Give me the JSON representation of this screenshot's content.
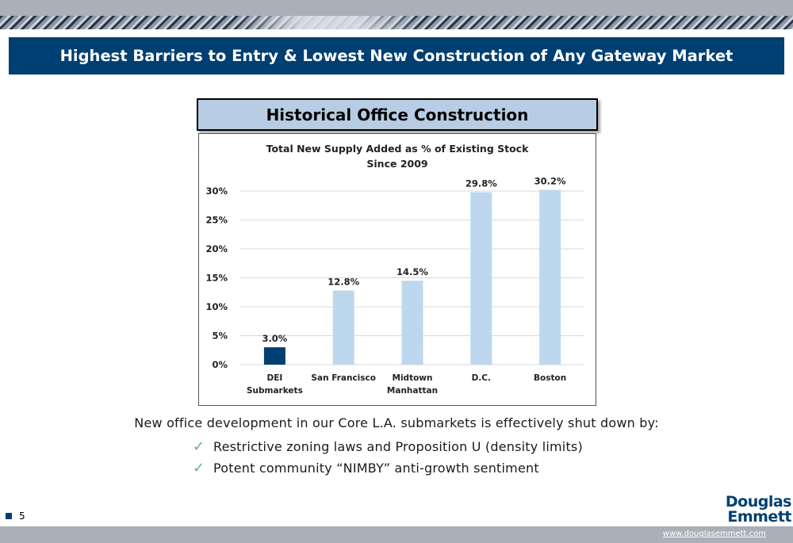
{
  "header": {
    "title": "Highest Barriers to Entry & Lowest New Construction of Any Gateway Market"
  },
  "chart_header": "Historical Office Construction",
  "chart_data": {
    "type": "bar",
    "title": "Total New Supply Added as % of Existing Stock",
    "subtitle": "Since 2009",
    "categories": [
      "DEI Submarkets",
      "San Francisco",
      "Midtown Manhattan",
      "D.C.",
      "Boston"
    ],
    "category_lines": [
      [
        "DEI",
        "Submarkets"
      ],
      [
        "San Francisco"
      ],
      [
        "Midtown",
        "Manhattan"
      ],
      [
        "D.C."
      ],
      [
        "Boston"
      ]
    ],
    "values": [
      3.0,
      12.8,
      14.5,
      29.8,
      30.2
    ],
    "data_labels": [
      "3.0%",
      "12.8%",
      "14.5%",
      "29.8%",
      "30.2%"
    ],
    "bar_colors": [
      "#003f72",
      "#bdd7ee",
      "#bdd7ee",
      "#bdd7ee",
      "#bdd7ee"
    ],
    "y_ticks": [
      0,
      5,
      10,
      15,
      20,
      25,
      30
    ],
    "y_tick_labels": [
      "0%",
      "5%",
      "10%",
      "15%",
      "20%",
      "25%",
      "30%"
    ],
    "ylim": [
      0,
      30
    ],
    "grid": true,
    "xlabel": "",
    "ylabel": ""
  },
  "body": {
    "intro": "New office development in our Core L.A. submarkets is effectively shut down by:",
    "bullets": [
      "Restrictive zoning laws and Proposition U (density limits)",
      "Potent community “NIMBY” anti-growth sentiment"
    ],
    "check_icon": "checkmark-icon"
  },
  "footer": {
    "page_number": "5",
    "logo_line1": "Douglas",
    "logo_line2": "Emmett",
    "website": "www.douglasemmett.com"
  },
  "colors": {
    "brand_navy": "#003f72",
    "header_light_blue": "#b8cce4",
    "bar_light": "#bdd7ee",
    "check_green": "#6fae7d",
    "footer_gray": "#a9b0b7"
  }
}
